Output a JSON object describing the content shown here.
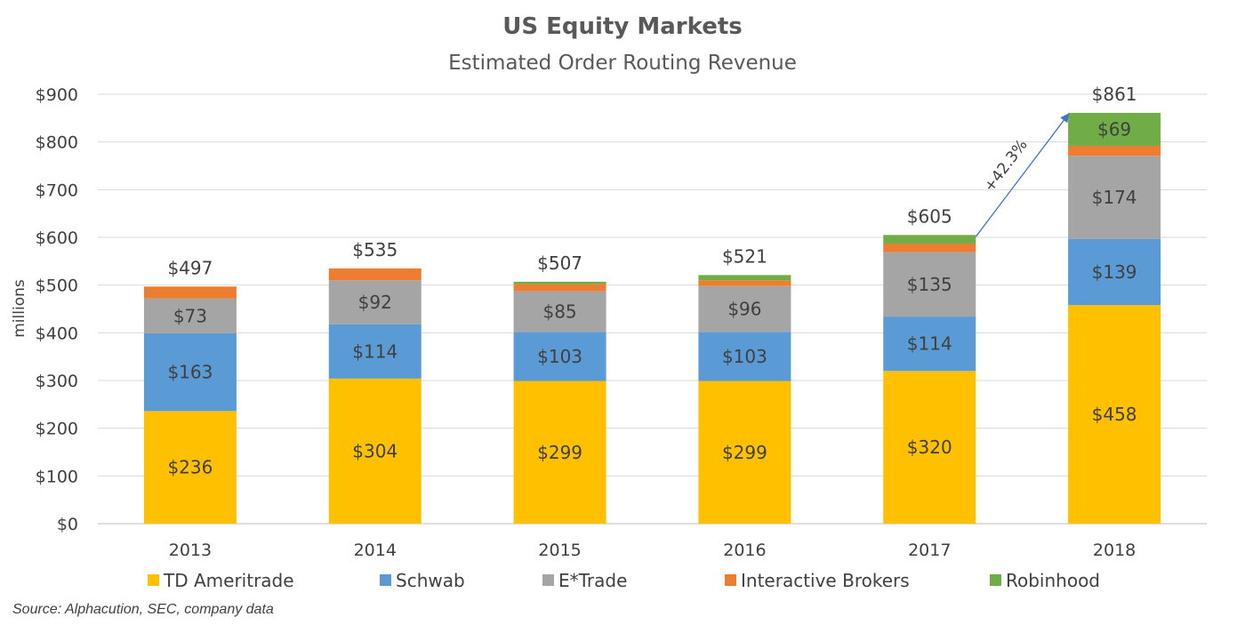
{
  "chart_data": {
    "type": "bar",
    "stacked": true,
    "title": "US Equity Markets",
    "subtitle": "Estimated Order Routing Revenue",
    "ylabel": "millions",
    "xlabel": "",
    "ylim": [
      0,
      900
    ],
    "yticks": [
      0,
      100,
      200,
      300,
      400,
      500,
      600,
      700,
      800,
      900
    ],
    "ytick_labels": [
      "$0",
      "$100",
      "$200",
      "$300",
      "$400",
      "$500",
      "$600",
      "$700",
      "$800",
      "$900"
    ],
    "categories": [
      "2013",
      "2014",
      "2015",
      "2016",
      "2017",
      "2018"
    ],
    "series": [
      {
        "name": "TD Ameritrade",
        "color": "#FFC000",
        "values": [
          236,
          304,
          299,
          299,
          320,
          458
        ],
        "labels": [
          "$236",
          "$304",
          "$299",
          "$299",
          "$320",
          "$458"
        ]
      },
      {
        "name": "Schwab",
        "color": "#5B9BD5",
        "values": [
          163,
          114,
          103,
          103,
          114,
          139
        ],
        "labels": [
          "$163",
          "$114",
          "$103",
          "$103",
          "$114",
          "$139"
        ]
      },
      {
        "name": "E*Trade",
        "color": "#A5A5A5",
        "values": [
          73,
          92,
          85,
          96,
          135,
          174
        ],
        "labels": [
          "$73",
          "$92",
          "$85",
          "$96",
          "$135",
          "$174"
        ]
      },
      {
        "name": "Interactive Brokers",
        "color": "#ED7D31",
        "values": [
          25,
          25,
          15,
          12,
          18,
          21
        ],
        "labels": [
          "",
          "",
          "",
          "",
          "",
          ""
        ]
      },
      {
        "name": "Robinhood",
        "color": "#70AD47",
        "values": [
          0,
          0,
          5,
          11,
          18,
          69
        ],
        "labels": [
          "",
          "",
          "",
          "",
          "",
          "$69"
        ]
      }
    ],
    "totals": [
      497,
      535,
      507,
      521,
      605,
      861
    ],
    "total_labels": [
      "$497",
      "$535",
      "$507",
      "$521",
      "$605",
      "$861"
    ],
    "annotation": {
      "text": "+42.3%",
      "from_category": "2017",
      "to_category": "2018",
      "color": "#4472C4"
    },
    "grid": true,
    "legend": "bottom",
    "source": "Source: Alphacution, SEC, company data"
  }
}
